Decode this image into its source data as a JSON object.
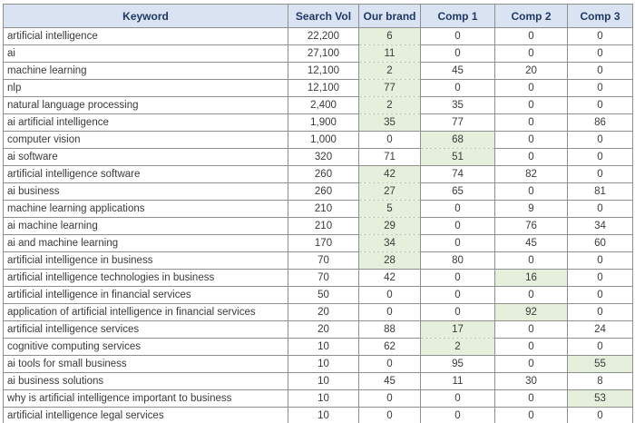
{
  "colors": {
    "header_bg": "#dae3f2",
    "header_text": "#1f3864",
    "highlight_bg": "#e5efdb",
    "grid_line": "#8f8f8f",
    "body_text": "#3a3a3a"
  },
  "table": {
    "columns": [
      {
        "key": "keyword",
        "label": "Keyword"
      },
      {
        "key": "search_vol",
        "label": "Search Vol"
      },
      {
        "key": "our_brand",
        "label": "Our brand"
      },
      {
        "key": "comp1",
        "label": "Comp 1"
      },
      {
        "key": "comp2",
        "label": "Comp 2"
      },
      {
        "key": "comp3",
        "label": "Comp 3"
      }
    ],
    "rows": [
      {
        "keyword": "artificial intelligence",
        "search_vol": "22,200",
        "our_brand": "6",
        "comp1": "0",
        "comp2": "0",
        "comp3": "0",
        "highlight": "our_brand"
      },
      {
        "keyword": "ai",
        "search_vol": "27,100",
        "our_brand": "11",
        "comp1": "0",
        "comp2": "0",
        "comp3": "0",
        "highlight": "our_brand"
      },
      {
        "keyword": "machine learning",
        "search_vol": "12,100",
        "our_brand": "2",
        "comp1": "45",
        "comp2": "20",
        "comp3": "0",
        "highlight": "our_brand"
      },
      {
        "keyword": "nlp",
        "search_vol": "12,100",
        "our_brand": "77",
        "comp1": "0",
        "comp2": "0",
        "comp3": "0",
        "highlight": "our_brand"
      },
      {
        "keyword": "natural language processing",
        "search_vol": "2,400",
        "our_brand": "2",
        "comp1": "35",
        "comp2": "0",
        "comp3": "0",
        "highlight": "our_brand"
      },
      {
        "keyword": "ai artificial intelligence",
        "search_vol": "1,900",
        "our_brand": "35",
        "comp1": "77",
        "comp2": "0",
        "comp3": "86",
        "highlight": "our_brand"
      },
      {
        "keyword": "computer vision",
        "search_vol": "1,000",
        "our_brand": "0",
        "comp1": "68",
        "comp2": "0",
        "comp3": "0",
        "highlight": "comp1"
      },
      {
        "keyword": "ai software",
        "search_vol": "320",
        "our_brand": "71",
        "comp1": "51",
        "comp2": "0",
        "comp3": "0",
        "highlight": "comp1"
      },
      {
        "keyword": "artificial intelligence software",
        "search_vol": "260",
        "our_brand": "42",
        "comp1": "74",
        "comp2": "82",
        "comp3": "0",
        "highlight": "our_brand"
      },
      {
        "keyword": "ai business",
        "search_vol": "260",
        "our_brand": "27",
        "comp1": "65",
        "comp2": "0",
        "comp3": "81",
        "highlight": "our_brand"
      },
      {
        "keyword": "machine learning applications",
        "search_vol": "210",
        "our_brand": "5",
        "comp1": "0",
        "comp2": "9",
        "comp3": "0",
        "highlight": "our_brand"
      },
      {
        "keyword": "ai machine learning",
        "search_vol": "210",
        "our_brand": "29",
        "comp1": "0",
        "comp2": "76",
        "comp3": "34",
        "highlight": "our_brand"
      },
      {
        "keyword": "ai and machine learning",
        "search_vol": "170",
        "our_brand": "34",
        "comp1": "0",
        "comp2": "45",
        "comp3": "60",
        "highlight": "our_brand"
      },
      {
        "keyword": "artificial intelligence in business",
        "search_vol": "70",
        "our_brand": "28",
        "comp1": "80",
        "comp2": "0",
        "comp3": "0",
        "highlight": "our_brand"
      },
      {
        "keyword": "artificial intelligence technologies in business",
        "search_vol": "70",
        "our_brand": "42",
        "comp1": "0",
        "comp2": "16",
        "comp3": "0",
        "highlight": "comp2"
      },
      {
        "keyword": "artificial intelligence in financial services",
        "search_vol": "50",
        "our_brand": "0",
        "comp1": "0",
        "comp2": "0",
        "comp3": "0",
        "highlight": ""
      },
      {
        "keyword": "application of artificial intelligence in financial services",
        "search_vol": "20",
        "our_brand": "0",
        "comp1": "0",
        "comp2": "92",
        "comp3": "0",
        "highlight": "comp2"
      },
      {
        "keyword": "artificial intelligence services",
        "search_vol": "20",
        "our_brand": "88",
        "comp1": "17",
        "comp2": "0",
        "comp3": "24",
        "highlight": "comp1"
      },
      {
        "keyword": "cognitive computing services",
        "search_vol": "10",
        "our_brand": "62",
        "comp1": "2",
        "comp2": "0",
        "comp3": "0",
        "highlight": "comp1"
      },
      {
        "keyword": "ai tools for small business",
        "search_vol": "10",
        "our_brand": "0",
        "comp1": "95",
        "comp2": "0",
        "comp3": "55",
        "highlight": "comp3"
      },
      {
        "keyword": "ai business solutions",
        "search_vol": "10",
        "our_brand": "45",
        "comp1": "11",
        "comp2": "30",
        "comp3": "8",
        "highlight": ""
      },
      {
        "keyword": "why is artificial intelligence important to business",
        "search_vol": "10",
        "our_brand": "0",
        "comp1": "0",
        "comp2": "0",
        "comp3": "53",
        "highlight": "comp3"
      },
      {
        "keyword": "artificial intelligence legal services",
        "search_vol": "10",
        "our_brand": "0",
        "comp1": "0",
        "comp2": "0",
        "comp3": "0",
        "highlight": ""
      }
    ]
  }
}
